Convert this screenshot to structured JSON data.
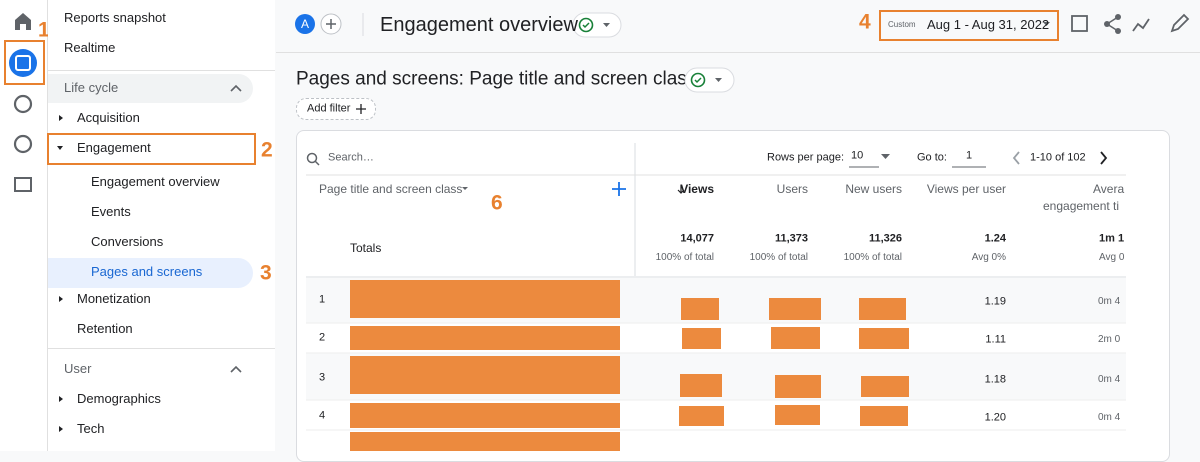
{
  "annotations": [
    "1",
    "2",
    "3",
    "4",
    "6"
  ],
  "nav": {
    "top": [
      "Reports snapshot",
      "Realtime"
    ],
    "lifecycle": {
      "title": "Life cycle",
      "items": [
        "Acquisition",
        "Engagement",
        "Engagement overview",
        "Events",
        "Conversions",
        "Pages and screens",
        "Monetization",
        "Retention"
      ]
    },
    "user": {
      "title": "User",
      "items": [
        "Demographics",
        "Tech"
      ]
    }
  },
  "header": {
    "avatar": "A",
    "page_title": "Engagement overview",
    "date_label": "Custom",
    "date_range": "Aug 1 - Aug 31, 2022"
  },
  "report": {
    "title": "Pages and screens: Page title and screen class",
    "add_filter": "Add filter"
  },
  "table": {
    "search": "Search…",
    "rows_per_page_label": "Rows per page:",
    "rows_per_page": "10",
    "goto_label": "Go to:",
    "goto": "1",
    "pagination": "1-10 of 102",
    "dimension": "Page title and screen class",
    "columns": [
      "Views",
      "Users",
      "New users",
      "Views per user",
      "Avera"
    ],
    "column_sub": "engagement ti",
    "totals": {
      "label": "Totals",
      "values": [
        "14,077",
        "11,373",
        "11,326",
        "1.24",
        "1m 1"
      ],
      "notes": [
        "100% of total",
        "100% of total",
        "100% of total",
        "Avg 0%",
        "Avg 0"
      ]
    },
    "rows": [
      {
        "index": "1",
        "views_per_user": "1.19",
        "time": "0m 4"
      },
      {
        "index": "2",
        "views_per_user": "1.11",
        "time": "2m 0"
      },
      {
        "index": "3",
        "views_per_user": "1.18",
        "time": "0m 4"
      },
      {
        "index": "4",
        "views_per_user": "1.20",
        "time": "0m 4"
      }
    ]
  }
}
